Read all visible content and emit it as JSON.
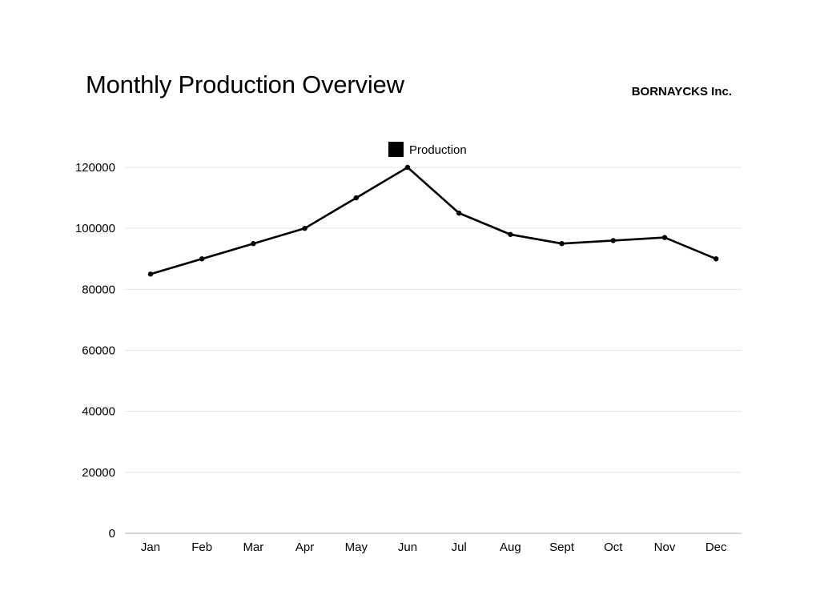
{
  "header": {
    "title": "Monthly Production Overview",
    "brand": "BORNAYCKS Inc."
  },
  "colors": {
    "line": "#000000",
    "grid": "#e3e3e3",
    "axis": "#bdbdbd"
  },
  "chart_data": {
    "type": "line",
    "title": "Monthly Production Overview",
    "xlabel": "",
    "ylabel": "",
    "categories": [
      "Jan",
      "Feb",
      "Mar",
      "Apr",
      "May",
      "Jun",
      "Jul",
      "Aug",
      "Sept",
      "Oct",
      "Nov",
      "Dec"
    ],
    "series": [
      {
        "name": "Production",
        "values": [
          85000,
          90000,
          95000,
          100000,
          110000,
          120000,
          105000,
          98000,
          95000,
          96000,
          97000,
          90000
        ]
      }
    ],
    "ylim": [
      0,
      120000
    ],
    "yticks": [
      0,
      20000,
      40000,
      60000,
      80000,
      100000,
      120000
    ],
    "grid": true,
    "legend": "top-center"
  }
}
